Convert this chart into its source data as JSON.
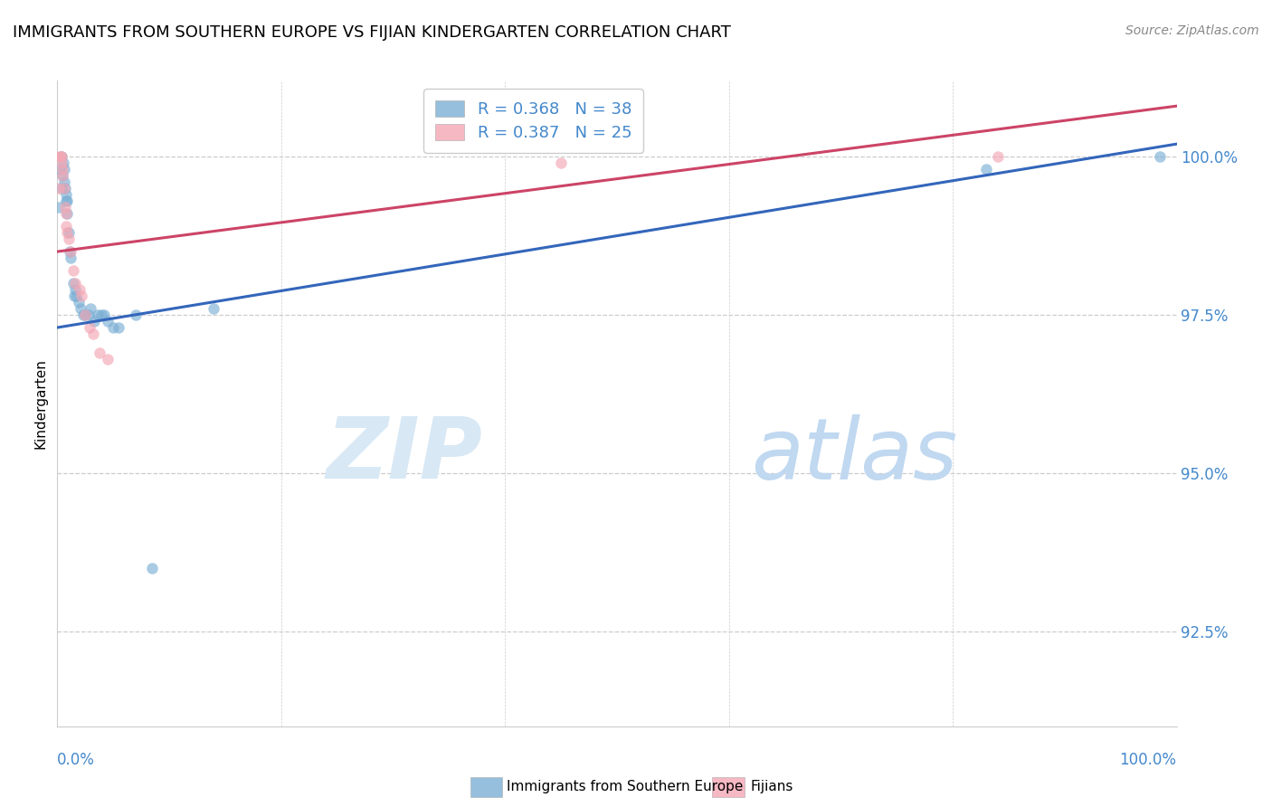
{
  "title": "IMMIGRANTS FROM SOUTHERN EUROPE VS FIJIAN KINDERGARTEN CORRELATION CHART",
  "source": "Source: ZipAtlas.com",
  "ylabel": "Kindergarten",
  "legend_blue_r": "R = 0.368",
  "legend_blue_n": "N = 38",
  "legend_pink_r": "R = 0.387",
  "legend_pink_n": "N = 25",
  "legend_label_blue": "Immigrants from Southern Europe",
  "legend_label_pink": "Fijians",
  "blue_color": "#7BAFD4",
  "pink_color": "#F4A7B4",
  "blue_line_color": "#3366BB",
  "pink_line_color": "#CC4466",
  "watermark_zip": "ZIP",
  "watermark_atlas": "atlas",
  "watermark_color": "#D8E8F5",
  "xlim": [
    0.0,
    100.0
  ],
  "ylim": [
    91.0,
    101.2
  ],
  "yticks": [
    92.5,
    95.0,
    97.5,
    100.0
  ],
  "ytick_labels": [
    "92.5%",
    "95.0%",
    "97.5%",
    "100.0%"
  ],
  "blue_x": [
    0.15,
    0.25,
    0.35,
    0.4,
    0.5,
    0.55,
    0.6,
    0.65,
    0.7,
    0.75,
    0.8,
    0.85,
    0.9,
    1.0,
    1.1,
    1.2,
    1.4,
    1.5,
    1.6,
    1.7,
    1.9,
    2.1,
    2.3,
    2.5,
    2.8,
    3.0,
    3.3,
    3.6,
    3.9,
    4.2,
    4.5,
    5.0,
    5.5,
    7.0,
    8.5,
    14.0,
    83.0,
    98.5
  ],
  "blue_y": [
    99.2,
    99.8,
    99.5,
    100.0,
    99.7,
    99.9,
    99.8,
    99.6,
    99.5,
    99.4,
    99.3,
    99.3,
    99.1,
    98.8,
    98.5,
    98.4,
    98.0,
    97.8,
    97.9,
    97.8,
    97.7,
    97.6,
    97.5,
    97.5,
    97.5,
    97.6,
    97.4,
    97.5,
    97.5,
    97.5,
    97.4,
    97.3,
    97.3,
    97.5,
    93.5,
    97.6,
    99.8,
    100.0
  ],
  "pink_x": [
    0.1,
    0.2,
    0.3,
    0.35,
    0.4,
    0.45,
    0.5,
    0.6,
    0.7,
    0.75,
    0.8,
    0.9,
    1.0,
    1.2,
    1.4,
    1.6,
    2.0,
    2.2,
    2.5,
    2.9,
    3.2,
    3.8,
    4.5,
    45.0,
    84.0
  ],
  "pink_y": [
    99.5,
    100.0,
    100.0,
    99.9,
    100.0,
    99.8,
    99.7,
    99.5,
    99.2,
    99.1,
    98.9,
    98.8,
    98.7,
    98.5,
    98.2,
    98.0,
    97.9,
    97.8,
    97.5,
    97.3,
    97.2,
    96.9,
    96.8,
    99.9,
    100.0
  ],
  "blue_line_x0": 0.0,
  "blue_line_x1": 100.0,
  "blue_line_y0": 97.3,
  "blue_line_y1": 100.2,
  "pink_line_x0": 0.0,
  "pink_line_x1": 100.0,
  "pink_line_y0": 98.5,
  "pink_line_y1": 100.8,
  "bg_color": "#ffffff",
  "grid_color": "#cccccc",
  "tick_label_color": "#4488cc",
  "title_fontsize": 13,
  "source_fontsize": 10,
  "label_fontsize": 11,
  "legend_fontsize": 13,
  "watermark_fontsize_zip": 68,
  "watermark_fontsize_atlas": 68,
  "marker_size": 9,
  "bottom_legend_label_blue": "Immigrants from Southern Europe",
  "bottom_legend_label_pink": "Fijians"
}
